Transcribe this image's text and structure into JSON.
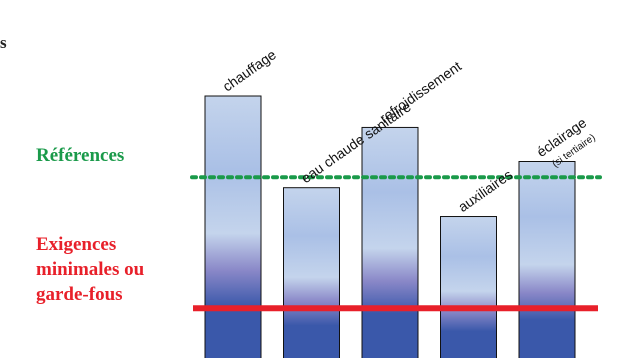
{
  "page": {
    "corner_fragment": "s"
  },
  "chart_data": {
    "type": "bar",
    "title": "",
    "xlabel": "",
    "ylabel": "",
    "ylim": [
      0,
      100
    ],
    "grid": false,
    "categories": [
      {
        "label": "chauffage",
        "sub": "",
        "value": 100
      },
      {
        "label": "eau chaude sanitaire",
        "sub": "",
        "value": 65
      },
      {
        "label": "refroidissement",
        "sub": "",
        "value": 88
      },
      {
        "label": "auxiliaires",
        "sub": "",
        "value": 54
      },
      {
        "label": "éclairage",
        "sub": "(si tertiaire)",
        "value": 75
      }
    ],
    "reference_line": {
      "label": "Références",
      "value": 69,
      "color": "#1a9a4a",
      "style": "dotted"
    },
    "minimum_line": {
      "label_lines": [
        "Exigences",
        "minimales ou",
        "garde-fous"
      ],
      "value": 19,
      "color": "#e8202a",
      "style": "solid"
    },
    "bar_colors": {
      "top": "#c4d4ec",
      "mid_light": "#aac0e6",
      "mid_purple": "#8a88c8",
      "bottom": "#3a58aa"
    }
  }
}
